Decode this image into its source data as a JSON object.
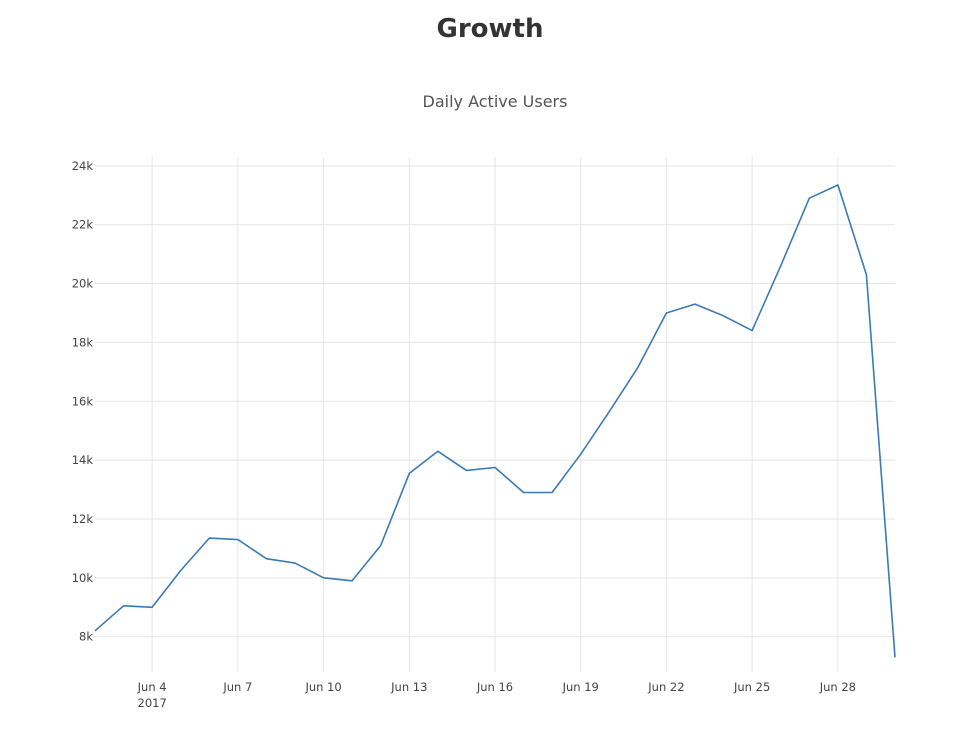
{
  "page": {
    "heading": "Growth"
  },
  "chart_data": {
    "type": "line",
    "title": "Daily Active Users",
    "xlabel": "",
    "ylabel": "",
    "x_type": "date",
    "xlim": [
      "2017-06-02",
      "2017-06-30"
    ],
    "ylim": [
      6800,
      24300
    ],
    "grid": true,
    "legend": "none",
    "x_ticks": [
      {
        "date": "2017-06-04",
        "label": "Jun 4",
        "sublabel": "2017"
      },
      {
        "date": "2017-06-07",
        "label": "Jun 7"
      },
      {
        "date": "2017-06-10",
        "label": "Jun 10"
      },
      {
        "date": "2017-06-13",
        "label": "Jun 13"
      },
      {
        "date": "2017-06-16",
        "label": "Jun 16"
      },
      {
        "date": "2017-06-19",
        "label": "Jun 19"
      },
      {
        "date": "2017-06-22",
        "label": "Jun 22"
      },
      {
        "date": "2017-06-25",
        "label": "Jun 25"
      },
      {
        "date": "2017-06-28",
        "label": "Jun 28"
      }
    ],
    "y_ticks": [
      {
        "value": 8000,
        "label": "8k"
      },
      {
        "value": 10000,
        "label": "10k"
      },
      {
        "value": 12000,
        "label": "12k"
      },
      {
        "value": 14000,
        "label": "14k"
      },
      {
        "value": 16000,
        "label": "16k"
      },
      {
        "value": 18000,
        "label": "18k"
      },
      {
        "value": 20000,
        "label": "20k"
      },
      {
        "value": 22000,
        "label": "22k"
      },
      {
        "value": 24000,
        "label": "24k"
      }
    ],
    "colors": {
      "series": "#3a7bb4"
    },
    "x": [
      "2017-06-02",
      "2017-06-03",
      "2017-06-04",
      "2017-06-05",
      "2017-06-06",
      "2017-06-07",
      "2017-06-08",
      "2017-06-09",
      "2017-06-10",
      "2017-06-11",
      "2017-06-12",
      "2017-06-13",
      "2017-06-14",
      "2017-06-15",
      "2017-06-16",
      "2017-06-17",
      "2017-06-18",
      "2017-06-19",
      "2017-06-20",
      "2017-06-21",
      "2017-06-22",
      "2017-06-23",
      "2017-06-24",
      "2017-06-25",
      "2017-06-26",
      "2017-06-27",
      "2017-06-28",
      "2017-06-29",
      "2017-06-30"
    ],
    "values": [
      8200,
      9050,
      9000,
      10250,
      11350,
      11300,
      10650,
      10500,
      10000,
      9900,
      11100,
      13550,
      14300,
      13650,
      13750,
      12900,
      12900,
      14200,
      15650,
      17150,
      19000,
      19300,
      18900,
      18400,
      20600,
      22900,
      23350,
      20300,
      7300
    ]
  }
}
